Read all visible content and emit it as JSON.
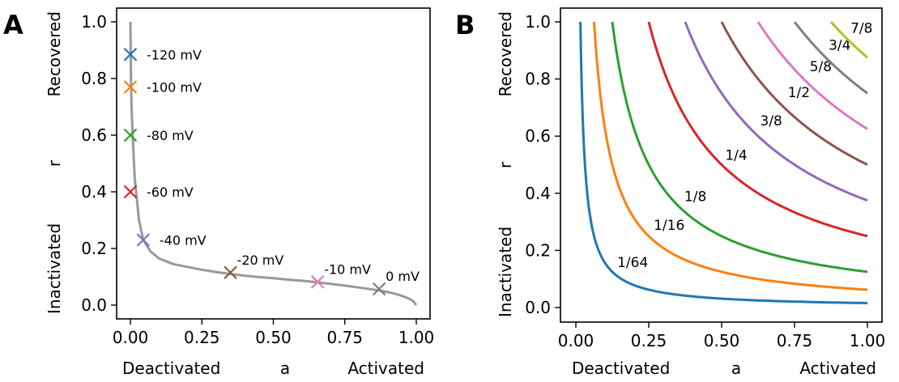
{
  "panels": [
    "A",
    "B"
  ],
  "chart_data": [
    {
      "type": "line",
      "panel": "A",
      "xlabel_parts": [
        "Deactivated",
        "a",
        "Activated"
      ],
      "ylabel_parts": [
        "Inactivated",
        "r",
        "Recovered"
      ],
      "xlim": [
        0,
        1
      ],
      "ylim": [
        0,
        1
      ],
      "xticks": [
        "0.00",
        "0.25",
        "0.50",
        "0.75",
        "1.00"
      ],
      "yticks": [
        "0.0",
        "0.2",
        "0.4",
        "0.6",
        "0.8",
        "1.0"
      ],
      "curve": {
        "color": "#999999",
        "x": [
          0.0,
          0.001,
          0.002,
          0.004,
          0.008,
          0.015,
          0.03,
          0.045,
          0.07,
          0.1,
          0.15,
          0.2,
          0.25,
          0.3,
          0.35,
          0.4,
          0.45,
          0.5,
          0.55,
          0.6,
          0.65,
          0.7,
          0.75,
          0.8,
          0.85,
          0.88,
          0.91,
          0.94,
          0.96,
          0.98,
          0.99,
          1.0
        ],
        "y": [
          1.0,
          0.9,
          0.8,
          0.7,
          0.6,
          0.45,
          0.3,
          0.23,
          0.19,
          0.165,
          0.145,
          0.135,
          0.125,
          0.117,
          0.11,
          0.104,
          0.099,
          0.095,
          0.09,
          0.086,
          0.081,
          0.075,
          0.069,
          0.062,
          0.055,
          0.05,
          0.044,
          0.036,
          0.029,
          0.02,
          0.013,
          0.0
        ]
      },
      "markers": [
        {
          "label": "-120 mV",
          "a": 0.0,
          "r": 0.885,
          "color": "#1f77b4"
        },
        {
          "label": "-100 mV",
          "a": 0.0,
          "r": 0.77,
          "color": "#ff7f0e"
        },
        {
          "label": "-80 mV",
          "a": 0.0,
          "r": 0.6,
          "color": "#2ca02c"
        },
        {
          "label": "-60 mV",
          "a": 0.0,
          "r": 0.4,
          "color": "#d62728"
        },
        {
          "label": "-40 mV",
          "a": 0.045,
          "r": 0.23,
          "color": "#9467bd"
        },
        {
          "label": "-20 mV",
          "a": 0.35,
          "r": 0.115,
          "color": "#8c564b"
        },
        {
          "label": "-10 mV",
          "a": 0.655,
          "r": 0.082,
          "color": "#e377c2"
        },
        {
          "label": "0 mV",
          "a": 0.87,
          "r": 0.057,
          "color": "#7f7f7f"
        }
      ]
    },
    {
      "type": "line",
      "panel": "B",
      "xlabel_parts": [
        "Deactivated",
        "a",
        "Activated"
      ],
      "ylabel_parts": [
        "Inactivated",
        "r",
        "Recovered"
      ],
      "xlim": [
        0,
        1
      ],
      "ylim": [
        0,
        1
      ],
      "xticks": [
        "0.00",
        "0.25",
        "0.50",
        "0.75",
        "1.00"
      ],
      "yticks": [
        "0.0",
        "0.2",
        "0.4",
        "0.6",
        "0.8",
        "1.0"
      ],
      "series": [
        {
          "name": "1/64",
          "k": 0.015625,
          "color": "#1f77b4",
          "label_x": 0.195,
          "label_y": 0.145
        },
        {
          "name": "1/16",
          "k": 0.0625,
          "color": "#ff7f0e",
          "label_x": 0.32,
          "label_y": 0.275
        },
        {
          "name": "1/8",
          "k": 0.125,
          "color": "#2ca02c",
          "label_x": 0.41,
          "label_y": 0.375
        },
        {
          "name": "1/4",
          "k": 0.25,
          "color": "#d62728",
          "label_x": 0.55,
          "label_y": 0.52
        },
        {
          "name": "3/8",
          "k": 0.375,
          "color": "#9467bd",
          "label_x": 0.67,
          "label_y": 0.64
        },
        {
          "name": "1/2",
          "k": 0.5,
          "color": "#8c564b",
          "label_x": 0.765,
          "label_y": 0.74
        },
        {
          "name": "5/8",
          "k": 0.625,
          "color": "#e377c2",
          "label_x": 0.84,
          "label_y": 0.83
        },
        {
          "name": "3/4",
          "k": 0.75,
          "color": "#7f7f7f",
          "label_x": 0.905,
          "label_y": 0.905
        },
        {
          "name": "7/8",
          "k": 0.875,
          "color": "#bcbd22",
          "label_x": 0.98,
          "label_y": 0.965
        }
      ]
    }
  ]
}
